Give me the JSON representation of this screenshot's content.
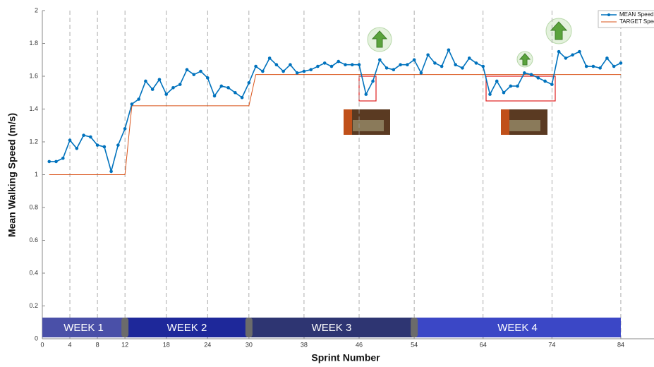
{
  "chart_data": {
    "type": "line",
    "xlabel": "Sprint Number",
    "ylabel": "Mean Walking Speed (m/s)",
    "x": [
      1,
      2,
      3,
      4,
      5,
      6,
      7,
      8,
      9,
      10,
      11,
      12,
      13,
      14,
      15,
      16,
      17,
      18,
      19,
      20,
      21,
      22,
      23,
      24,
      25,
      26,
      27,
      28,
      29,
      30,
      31,
      32,
      33,
      34,
      35,
      36,
      37,
      38,
      39,
      40,
      41,
      42,
      43,
      44,
      45,
      46,
      47,
      48,
      49,
      50,
      51,
      52,
      53,
      54,
      55,
      56,
      57,
      58,
      59,
      60,
      61,
      62,
      63,
      64,
      65,
      66,
      67,
      68,
      69,
      70,
      71,
      72,
      73,
      74,
      75,
      76,
      77,
      78,
      79,
      80,
      81,
      82,
      83,
      84
    ],
    "series": [
      {
        "name": "MEAN Speed",
        "color": "#0072bd",
        "marker": true,
        "values": [
          1.08,
          1.08,
          1.1,
          1.21,
          1.16,
          1.24,
          1.23,
          1.18,
          1.17,
          1.02,
          1.18,
          1.28,
          1.43,
          1.46,
          1.57,
          1.52,
          1.58,
          1.49,
          1.53,
          1.55,
          1.64,
          1.61,
          1.63,
          1.59,
          1.48,
          1.54,
          1.53,
          1.5,
          1.47,
          1.56,
          1.66,
          1.63,
          1.71,
          1.67,
          1.63,
          1.67,
          1.62,
          1.63,
          1.64,
          1.66,
          1.68,
          1.66,
          1.69,
          1.67,
          1.67,
          1.67,
          1.49,
          1.57,
          1.7,
          1.65,
          1.64,
          1.67,
          1.67,
          1.7,
          1.62,
          1.73,
          1.68,
          1.66,
          1.76,
          1.67,
          1.65,
          1.71,
          1.68,
          1.66,
          1.49,
          1.57,
          1.5,
          1.54,
          1.54,
          1.62,
          1.61,
          1.59,
          1.57,
          1.55,
          1.75,
          1.71,
          1.73,
          1.75,
          1.66,
          1.66,
          1.65,
          1.71,
          1.66,
          1.68
        ]
      },
      {
        "name": "TARGET Speed",
        "color": "#d95319",
        "marker": false,
        "values": [
          1,
          1,
          1,
          1,
          1,
          1,
          1,
          1,
          1,
          1,
          1,
          1,
          1.42,
          1.42,
          1.42,
          1.42,
          1.42,
          1.42,
          1.42,
          1.42,
          1.42,
          1.42,
          1.42,
          1.42,
          1.42,
          1.42,
          1.42,
          1.42,
          1.42,
          1.42,
          1.61,
          1.61,
          1.61,
          1.61,
          1.61,
          1.61,
          1.61,
          1.61,
          1.61,
          1.61,
          1.61,
          1.61,
          1.61,
          1.61,
          1.61,
          1.61,
          1.61,
          1.61,
          1.61,
          1.61,
          1.61,
          1.61,
          1.61,
          1.61,
          1.61,
          1.61,
          1.61,
          1.61,
          1.61,
          1.61,
          1.61,
          1.61,
          1.61,
          1.61,
          1.61,
          1.61,
          1.61,
          1.61,
          1.61,
          1.61,
          1.61,
          1.61,
          1.61,
          1.61,
          1.61,
          1.61,
          1.61,
          1.61,
          1.61,
          1.61,
          1.61,
          1.61,
          1.61,
          1.61
        ]
      }
    ],
    "xlim": [
      0,
      88
    ],
    "xticks": [
      0,
      4,
      8,
      12,
      18,
      24,
      30,
      38,
      46,
      54,
      64,
      74,
      84
    ],
    "ylim": [
      0,
      2
    ],
    "yticks": [
      0,
      0.2,
      0.4,
      0.6,
      0.8,
      1,
      1.2,
      1.4,
      1.6,
      1.8,
      2
    ],
    "xgrid": true,
    "legend": "upper right",
    "weeks": [
      {
        "label": "WEEK 1",
        "start": 0,
        "end": 12,
        "color": "#4a50a8"
      },
      {
        "label": "WEEK 2",
        "start": 12,
        "end": 30,
        "color": "#1e289a"
      },
      {
        "label": "WEEK 3",
        "start": 30,
        "end": 54,
        "color": "#2e3572"
      },
      {
        "label": "WEEK 4",
        "start": 54,
        "end": 84,
        "color": "#3b47c6"
      }
    ]
  }
}
